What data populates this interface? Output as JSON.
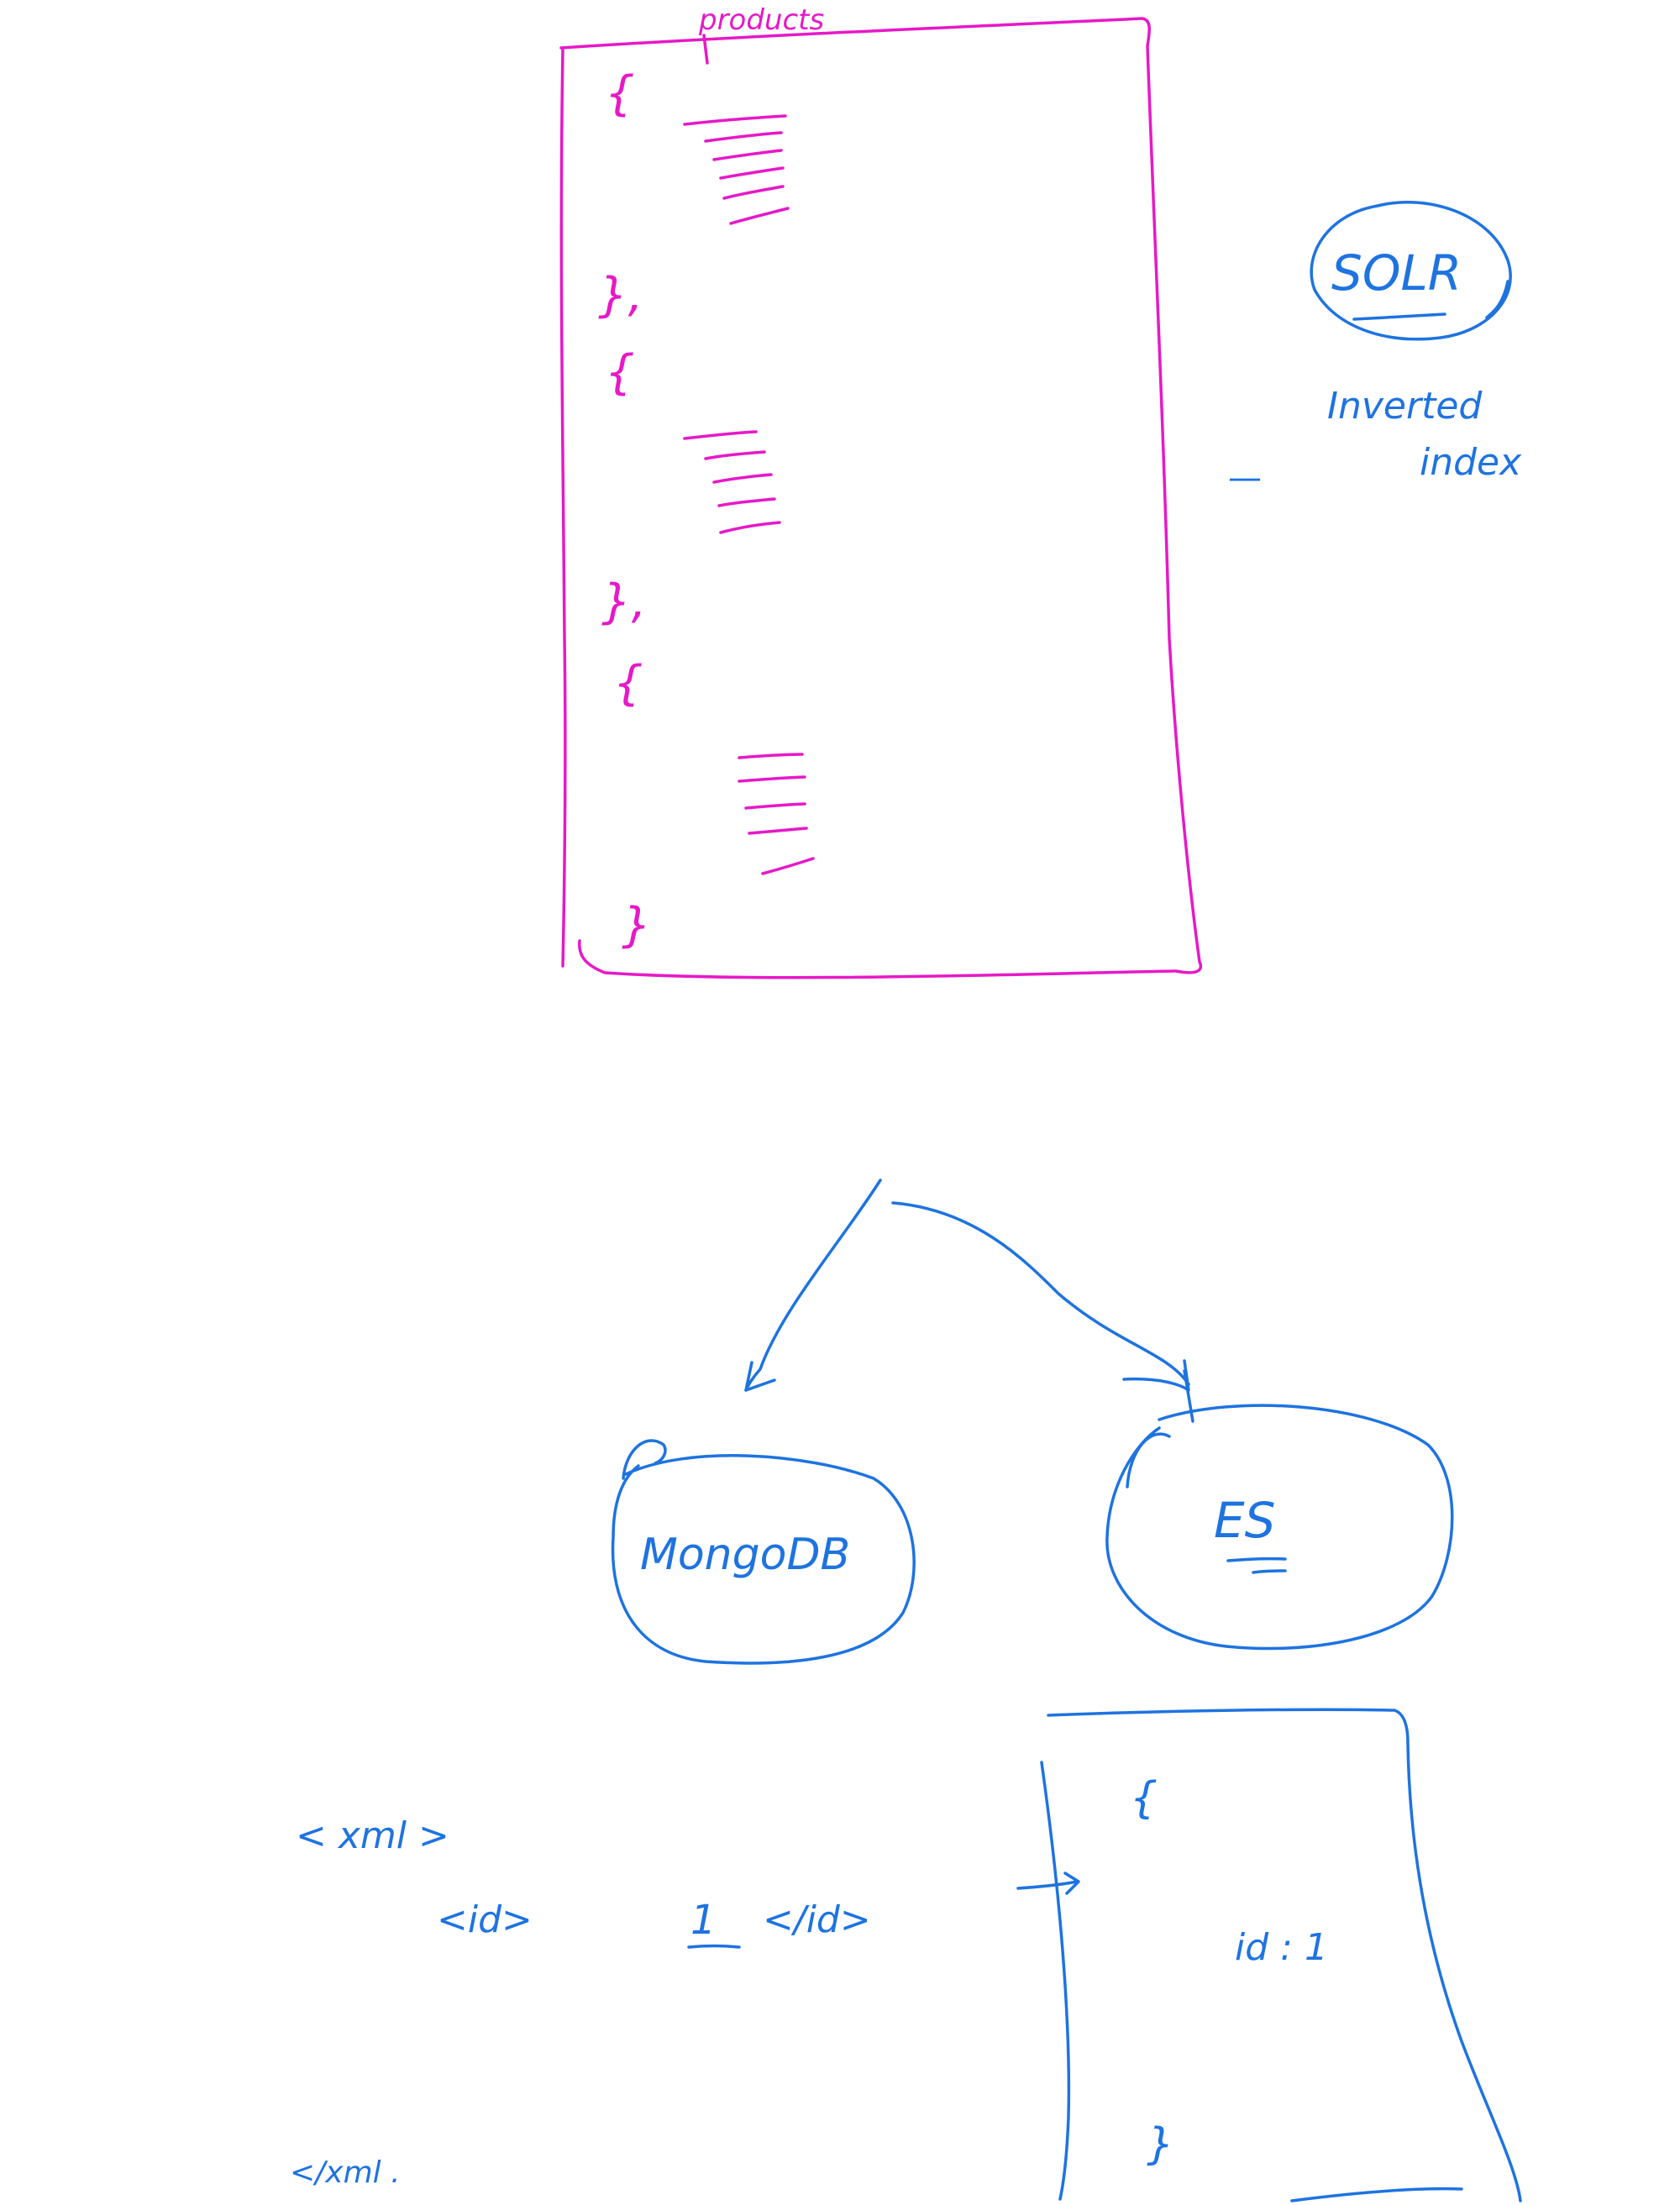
{
  "colors": {
    "pink_ink": "#e619c8",
    "blue_ink": "#1e73e0",
    "background": "#ffffff"
  },
  "products_box": {
    "title": "products",
    "open_brace_1": "{",
    "close_brace_1": "},",
    "open_brace_2": "{",
    "close_brace_2": "},",
    "open_brace_3": "{",
    "close_brace_3": "}"
  },
  "solr": {
    "label": "SOLR",
    "caption_line1": "Inverted",
    "caption_line2": "index",
    "dash": "—"
  },
  "split": {
    "left_node": "MongoDB",
    "right_node": "ES"
  },
  "xml": {
    "open_tag": "< xml >",
    "id_open": "<id>",
    "id_value": "1",
    "id_close": "</id>",
    "close_tag": "</xml ."
  },
  "doc_box": {
    "open_brace": "{",
    "field": "id : 1",
    "close_brace": "}"
  }
}
